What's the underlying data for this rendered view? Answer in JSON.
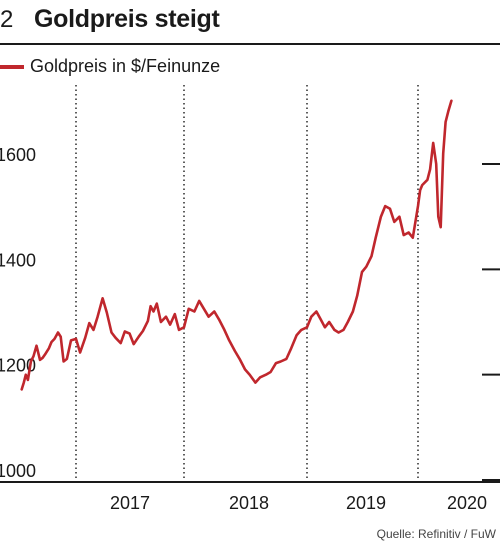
{
  "header": {
    "number": "2",
    "title": "Goldpreis steigt"
  },
  "legend": {
    "label": "Goldpreis in $/Feinunze",
    "color": "#c0272d"
  },
  "source": "Quelle: Refinitiv / FuW",
  "chart_data": {
    "type": "line",
    "title": "Goldpreis steigt",
    "xlabel": "",
    "ylabel": "",
    "ylim": [
      1000,
      1750
    ],
    "yticks": [
      1000,
      1200,
      1400,
      1600
    ],
    "xlim": [
      "2016-07",
      "2020-03"
    ],
    "xticks": [
      "2017",
      "2018",
      "2019",
      "2020"
    ],
    "grid": "dotted vertical lines at year boundaries, solid horizontal ticks",
    "series": [
      {
        "name": "Goldpreis in $/Feinunze",
        "color": "#c0272d",
        "x": [
          "2016-07-01",
          "2016-07-08",
          "2016-07-15",
          "2016-07-22",
          "2016-08-01",
          "2016-08-10",
          "2016-08-20",
          "2016-09-01",
          "2016-09-10",
          "2016-09-20",
          "2016-10-01",
          "2016-10-10",
          "2016-10-20",
          "2016-11-01",
          "2016-11-10",
          "2016-11-20",
          "2016-12-01",
          "2016-12-15",
          "2017-01-01",
          "2017-01-15",
          "2017-02-01",
          "2017-02-15",
          "2017-03-01",
          "2017-03-15",
          "2017-04-01",
          "2017-04-15",
          "2017-05-01",
          "2017-05-15",
          "2017-06-01",
          "2017-06-15",
          "2017-07-01",
          "2017-07-15",
          "2017-08-01",
          "2017-08-15",
          "2017-09-01",
          "2017-09-10",
          "2017-09-20",
          "2017-10-01",
          "2017-10-15",
          "2017-11-01",
          "2017-11-15",
          "2017-12-01",
          "2017-12-15",
          "2018-01-01",
          "2018-01-15",
          "2018-02-01",
          "2018-02-15",
          "2018-03-01",
          "2018-03-15",
          "2018-04-01",
          "2018-04-15",
          "2018-05-01",
          "2018-05-15",
          "2018-06-01",
          "2018-06-15",
          "2018-07-01",
          "2018-07-15",
          "2018-08-01",
          "2018-08-15",
          "2018-09-01",
          "2018-09-15",
          "2018-10-01",
          "2018-10-15",
          "2018-11-01",
          "2018-11-15",
          "2018-12-01",
          "2018-12-15",
          "2019-01-01",
          "2019-01-15",
          "2019-02-01",
          "2019-02-15",
          "2019-03-01",
          "2019-03-15",
          "2019-04-01",
          "2019-04-15",
          "2019-05-01",
          "2019-05-15",
          "2019-06-01",
          "2019-06-15",
          "2019-07-01",
          "2019-07-15",
          "2019-08-01",
          "2019-08-15",
          "2019-09-01",
          "2019-09-15",
          "2019-10-01",
          "2019-10-15",
          "2019-11-01",
          "2019-11-15",
          "2019-12-01",
          "2019-12-15",
          "2020-01-01",
          "2020-01-08",
          "2020-01-15",
          "2020-02-01",
          "2020-02-10",
          "2020-02-20",
          "2020-03-01",
          "2020-03-08",
          "2020-03-16",
          "2020-03-24",
          "2020-04-01",
          "2020-04-10",
          "2020-04-20"
        ],
        "values": [
          1172,
          1185,
          1200,
          1190,
          1225,
          1235,
          1255,
          1228,
          1232,
          1240,
          1250,
          1262,
          1268,
          1280,
          1272,
          1225,
          1230,
          1265,
          1268,
          1242,
          1270,
          1298,
          1285,
          1310,
          1345,
          1318,
          1280,
          1270,
          1260,
          1282,
          1278,
          1258,
          1272,
          1283,
          1302,
          1330,
          1320,
          1335,
          1300,
          1310,
          1295,
          1315,
          1285,
          1290,
          1325,
          1320,
          1340,
          1325,
          1310,
          1320,
          1305,
          1285,
          1265,
          1245,
          1230,
          1210,
          1200,
          1185,
          1195,
          1200,
          1205,
          1222,
          1225,
          1230,
          1250,
          1275,
          1285,
          1290,
          1310,
          1320,
          1305,
          1290,
          1300,
          1285,
          1280,
          1285,
          1300,
          1320,
          1350,
          1395,
          1405,
          1425,
          1460,
          1500,
          1520,
          1515,
          1490,
          1500,
          1465,
          1470,
          1460,
          1520,
          1550,
          1560,
          1570,
          1590,
          1640,
          1600,
          1500,
          1480,
          1620,
          1680,
          1700,
          1720
        ]
      }
    ]
  }
}
